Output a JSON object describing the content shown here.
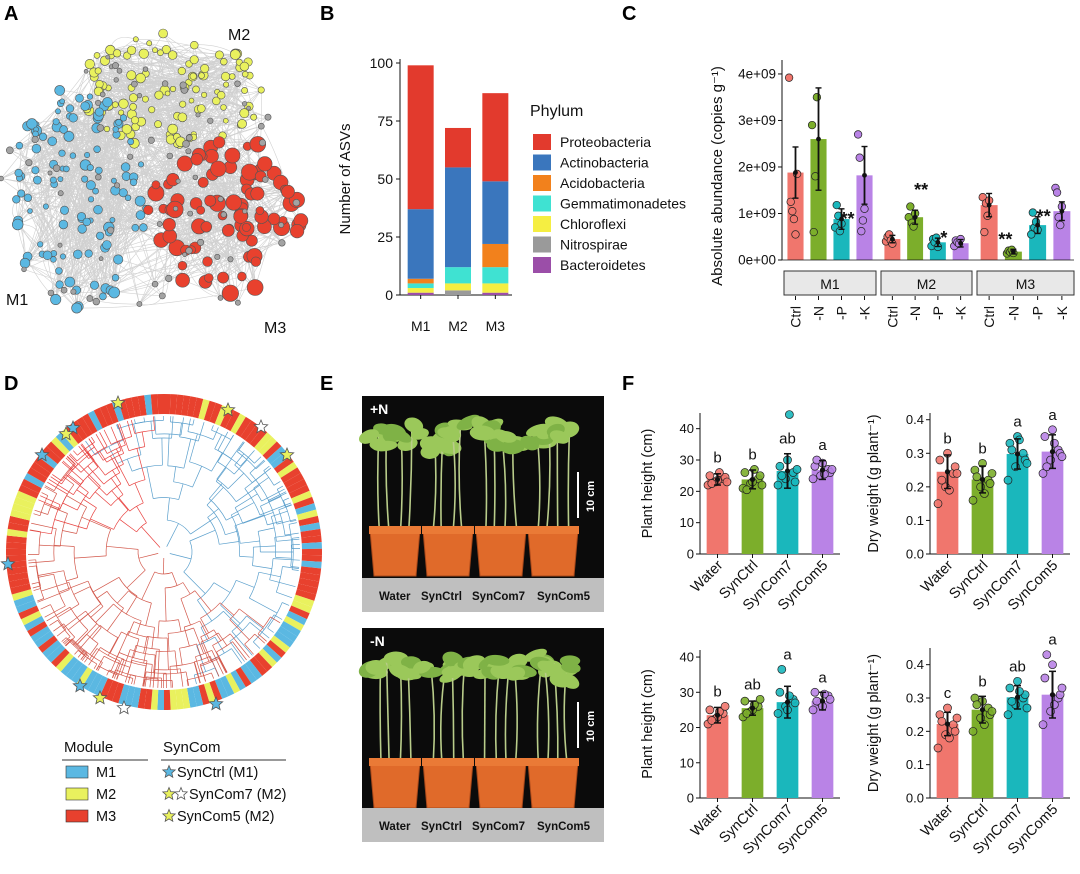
{
  "panels": {
    "A": "A",
    "B": "B",
    "C": "C",
    "D": "D",
    "E": "E",
    "F": "F"
  },
  "network": {
    "modules": [
      "M1",
      "M2",
      "M3"
    ],
    "colors": {
      "M1": "#5bb8e2",
      "M2": "#e9f15e",
      "M3": "#e8412e",
      "other": "#a3a3a3"
    }
  },
  "chart_data": [
    {
      "id": "B",
      "type": "bar",
      "stacked": true,
      "categories": [
        "M1",
        "M2",
        "M3"
      ],
      "ylabel": "Number of ASVs",
      "ylim": [
        0,
        100
      ],
      "yticks": [
        0,
        25,
        50,
        75,
        100
      ],
      "legend_title": "Phylum",
      "legend_position": "right",
      "series": [
        {
          "name": "Bacteroidetes",
          "color": "#9b4ea8",
          "values": [
            1,
            0,
            1
          ]
        },
        {
          "name": "Nitrospirae",
          "color": "#9a9a9a",
          "values": [
            0,
            2,
            0
          ]
        },
        {
          "name": "Chloroflexi",
          "color": "#f5ee42",
          "values": [
            2,
            3,
            4
          ]
        },
        {
          "name": "Gemmatimonadetes",
          "color": "#3fe2d2",
          "values": [
            2,
            7,
            7
          ]
        },
        {
          "name": "Acidobacteria",
          "color": "#f2811c",
          "values": [
            2,
            0,
            10
          ]
        },
        {
          "name": "Actinobacteria",
          "color": "#3a76bd",
          "values": [
            30,
            43,
            27
          ]
        },
        {
          "name": "Proteobacteria",
          "color": "#e23a2d",
          "values": [
            62,
            17,
            38
          ]
        }
      ],
      "legend_order": [
        "Proteobacteria",
        "Actinobacteria",
        "Acidobacteria",
        "Gemmatimonadetes",
        "Chloroflexi",
        "Nitrospirae",
        "Bacteroidetes"
      ]
    },
    {
      "id": "C",
      "type": "bar",
      "ylabel": "Absolute abundance (copies g⁻¹)",
      "ylim": [
        0,
        4300000000.0
      ],
      "yticks": [
        0,
        1000000000.0,
        2000000000.0,
        3000000000.0,
        4000000000.0
      ],
      "ytick_labels": [
        "0e+00",
        "1e+09",
        "2e+09",
        "3e+09",
        "4e+09"
      ],
      "facets": [
        "M1",
        "M2",
        "M3"
      ],
      "categories": [
        "Ctrl",
        "-N",
        "-P",
        "-K"
      ],
      "colors": [
        "#f0766d",
        "#7cae2b",
        "#1ab7bc",
        "#b983e6"
      ],
      "means": [
        [
          1880000000.0,
          2600000000.0,
          880000000.0,
          1820000000.0
        ],
        [
          450000000.0,
          920000000.0,
          380000000.0,
          360000000.0
        ],
        [
          1180000000.0,
          180000000.0,
          750000000.0,
          1050000000.0
        ]
      ],
      "sd": [
        [
          550000000.0,
          1100000000.0,
          220000000.0,
          620000000.0
        ],
        [
          80000000.0,
          150000000.0,
          90000000.0,
          80000000.0
        ],
        [
          250000000.0,
          50000000.0,
          180000000.0,
          200000000.0
        ]
      ],
      "points": [
        [
          [
            3920000000.0,
            1250000000.0,
            1050000000.0,
            880000000.0,
            550000000.0,
            1850000000.0
          ],
          [
            2900000000.0,
            600000000.0,
            1800000000.0,
            3500000000.0
          ],
          [
            700000000.0,
            1180000000.0,
            950000000.0,
            620000000.0,
            780000000.0
          ],
          [
            2700000000.0,
            2200000000.0,
            620000000.0,
            850000000.0,
            1100000000.0
          ]
        ],
        [
          [
            400000000.0,
            500000000.0,
            550000000.0,
            420000000.0,
            350000000.0
          ],
          [
            920000000.0,
            1150000000.0,
            800000000.0,
            720000000.0,
            1000000000.0
          ],
          [
            300000000.0,
            450000000.0,
            380000000.0,
            480000000.0,
            280000000.0
          ],
          [
            300000000.0,
            420000000.0,
            380000000.0,
            350000000.0,
            450000000.0
          ]
        ],
        [
          [
            1350000000.0,
            600000000.0,
            1220000000.0,
            950000000.0,
            1280000000.0
          ],
          [
            140000000.0,
            200000000.0,
            170000000.0,
            220000000.0,
            150000000.0
          ],
          [
            550000000.0,
            1020000000.0,
            700000000.0,
            820000000.0,
            650000000.0
          ],
          [
            1550000000.0,
            1450000000.0,
            920000000.0,
            750000000.0,
            1150000000.0
          ]
        ]
      ],
      "significance": [
        [
          "",
          "",
          "**",
          ""
        ],
        [
          "",
          "**",
          "*",
          ""
        ],
        [
          "",
          "**",
          "**",
          ""
        ]
      ]
    },
    {
      "id": "F-top-height",
      "type": "bar",
      "ylabel": "Plant height (cm)",
      "ylim": [
        0,
        45
      ],
      "yticks": [
        0,
        10,
        20,
        30,
        40
      ],
      "categories": [
        "Water",
        "SynCtrl",
        "SynCom7",
        "SynCom5"
      ],
      "colors": [
        "#f0766d",
        "#7cae2b",
        "#1ab7bc",
        "#b983e6"
      ],
      "means": [
        23.8,
        23.8,
        26.5,
        26.8
      ],
      "sd": [
        1.8,
        3.0,
        5.5,
        3.0
      ],
      "letters": [
        "b",
        "b",
        "ab",
        "a"
      ],
      "points": [
        [
          22,
          23,
          24,
          25,
          23.5,
          24.5,
          22.5,
          26,
          23
        ],
        [
          21,
          22.5,
          24,
          26,
          23,
          25,
          20.5,
          27,
          22
        ],
        [
          22,
          24,
          26,
          28,
          30,
          23,
          25,
          44.5,
          27
        ],
        [
          24,
          25,
          27,
          28,
          29,
          26,
          30,
          25.5,
          27
        ]
      ]
    },
    {
      "id": "F-top-dry",
      "type": "bar",
      "ylabel": "Dry weight (g plant⁻¹)",
      "ylim": [
        0,
        0.42
      ],
      "yticks": [
        0,
        0.1,
        0.2,
        0.3,
        0.4
      ],
      "categories": [
        "Water",
        "SynCtrl",
        "SynCom7",
        "SynCom5"
      ],
      "colors": [
        "#f0766d",
        "#7cae2b",
        "#1ab7bc",
        "#b983e6"
      ],
      "means": [
        0.245,
        0.222,
        0.298,
        0.305
      ],
      "sd": [
        0.05,
        0.04,
        0.045,
        0.05
      ],
      "letters": [
        "b",
        "b",
        "a",
        "a"
      ],
      "points": [
        [
          0.15,
          0.2,
          0.24,
          0.28,
          0.3,
          0.26,
          0.22,
          0.19,
          0.24
        ],
        [
          0.16,
          0.2,
          0.22,
          0.25,
          0.27,
          0.21,
          0.23,
          0.18,
          0.24
        ],
        [
          0.22,
          0.26,
          0.3,
          0.33,
          0.35,
          0.28,
          0.31,
          0.34,
          0.27
        ],
        [
          0.24,
          0.28,
          0.31,
          0.35,
          0.37,
          0.3,
          0.26,
          0.33,
          0.29
        ]
      ]
    },
    {
      "id": "F-bottom-height",
      "type": "bar",
      "ylabel": "Plant height (cm)",
      "ylim": [
        0,
        42
      ],
      "yticks": [
        0,
        10,
        20,
        30,
        40
      ],
      "categories": [
        "Water",
        "SynCtrl",
        "SynCom7",
        "SynCom5"
      ],
      "colors": [
        "#f0766d",
        "#7cae2b",
        "#1ab7bc",
        "#b983e6"
      ],
      "means": [
        23.5,
        25.5,
        27.2,
        27.5
      ],
      "sd": [
        2.2,
        2.0,
        4.5,
        2.5
      ],
      "letters": [
        "b",
        "ab",
        "a",
        "a"
      ],
      "points": [
        [
          21,
          22.5,
          24,
          25,
          23,
          26,
          22,
          24.5
        ],
        [
          23,
          24.5,
          26,
          27.5,
          25,
          28,
          24,
          26.5
        ],
        [
          24,
          26,
          28,
          30,
          25,
          27,
          36.5,
          29
        ],
        [
          25,
          27,
          29,
          30,
          26,
          28,
          27.5,
          29.5
        ]
      ]
    },
    {
      "id": "F-bottom-dry",
      "type": "bar",
      "ylabel": "Dry weight (g plant⁻¹)",
      "ylim": [
        0,
        0.45
      ],
      "yticks": [
        0,
        0.1,
        0.2,
        0.3,
        0.4
      ],
      "categories": [
        "Water",
        "SynCtrl",
        "SynCom7",
        "SynCom5"
      ],
      "colors": [
        "#f0766d",
        "#7cae2b",
        "#1ab7bc",
        "#b983e6"
      ],
      "means": [
        0.222,
        0.265,
        0.302,
        0.31
      ],
      "sd": [
        0.035,
        0.04,
        0.035,
        0.07
      ],
      "letters": [
        "c",
        "b",
        "ab",
        "a"
      ],
      "points": [
        [
          0.15,
          0.19,
          0.22,
          0.25,
          0.27,
          0.2,
          0.23,
          0.18,
          0.24
        ],
        [
          0.2,
          0.24,
          0.27,
          0.3,
          0.29,
          0.25,
          0.28,
          0.22,
          0.26
        ],
        [
          0.25,
          0.28,
          0.3,
          0.33,
          0.35,
          0.31,
          0.29,
          0.32,
          0.27
        ],
        [
          0.22,
          0.26,
          0.3,
          0.36,
          0.4,
          0.31,
          0.43,
          0.28,
          0.33
        ]
      ]
    }
  ],
  "legend_D": {
    "module_title": "Module",
    "modules": [
      {
        "label": "M1",
        "color": "#5bb8e2"
      },
      {
        "label": "M2",
        "color": "#e9f15e"
      },
      {
        "label": "M3",
        "color": "#e8412e"
      }
    ],
    "syncom_title": "SynCom",
    "syncoms": [
      {
        "label": "SynCtrl (M1)"
      },
      {
        "label": "SynCom7 (M2)"
      },
      {
        "label": "SynCom5 (M2)"
      }
    ]
  },
  "photos": [
    {
      "treatment": "+N",
      "scale": "10 cm",
      "labels": [
        "Water",
        "SynCtrl",
        "SynCom7",
        "SynCom5"
      ]
    },
    {
      "treatment": "-N",
      "scale": "10 cm",
      "labels": [
        "Water",
        "SynCtrl",
        "SynCom7",
        "SynCom5"
      ]
    }
  ]
}
